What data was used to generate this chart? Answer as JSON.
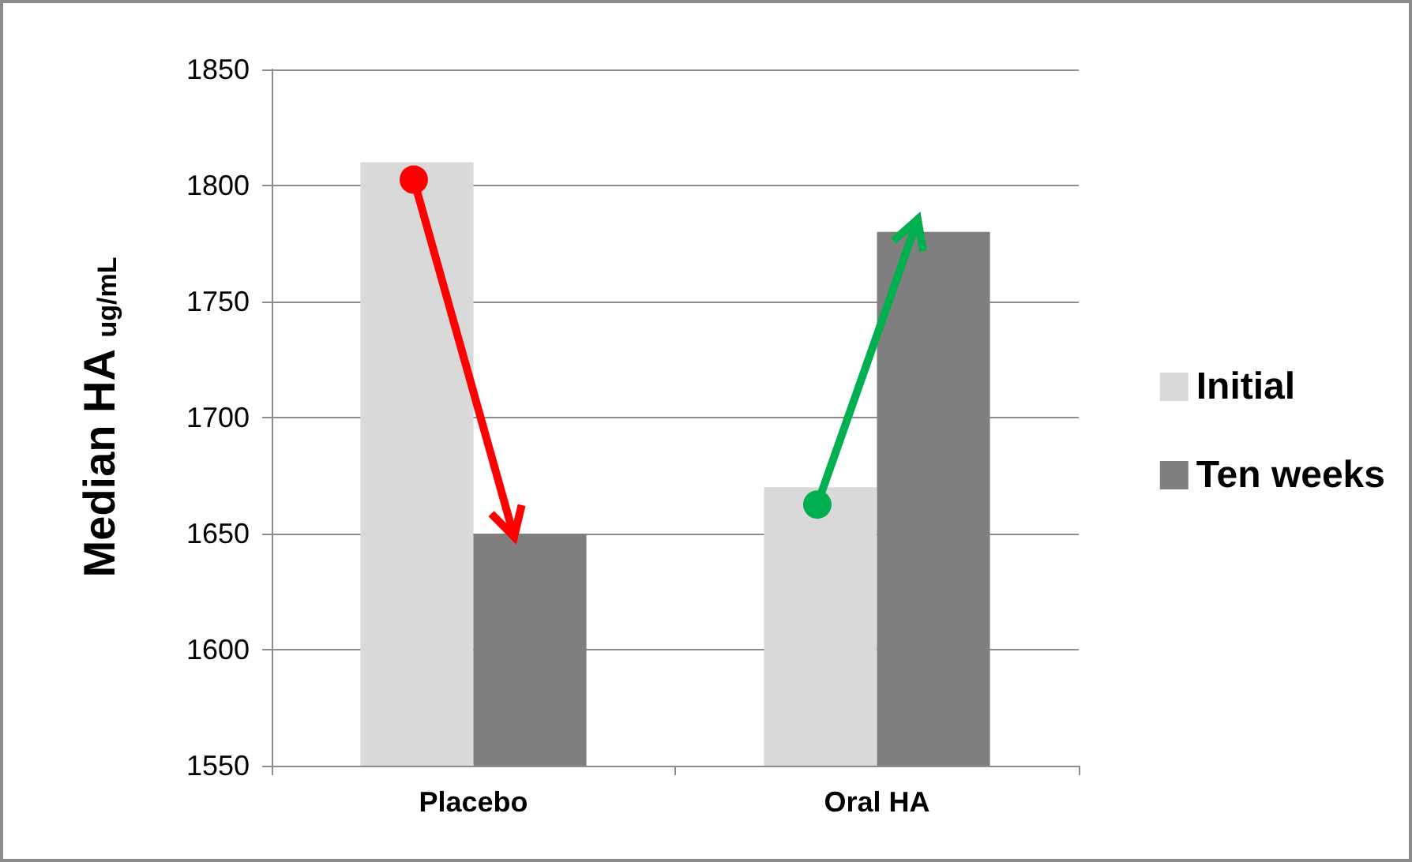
{
  "chart_data": {
    "type": "bar",
    "ylabel": "Median HA $_{ug/mL}$",
    "categories": [
      "Placebo",
      "Oral HA"
    ],
    "series": [
      {
        "name": "Initial",
        "color": "#d9d9d9",
        "values": [
          1810,
          1670
        ]
      },
      {
        "name": "Ten weeks",
        "color": "#7f7f7f",
        "values": [
          1650,
          1780
        ]
      }
    ],
    "ylim": [
      1550,
      1850
    ],
    "yticks": [
      1550,
      1600,
      1650,
      1700,
      1750,
      1800,
      1850
    ],
    "grid": "y",
    "legend": "right"
  }
}
